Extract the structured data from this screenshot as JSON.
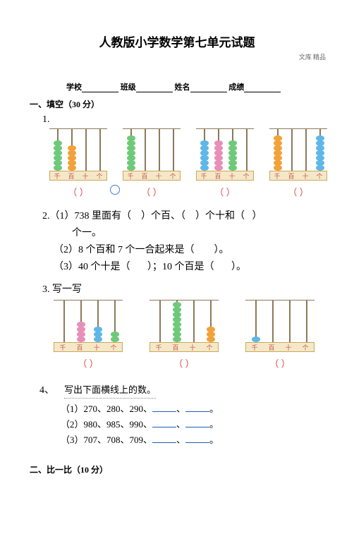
{
  "watermark": "文库 精品",
  "title": "人教版小学数学第七单元试题",
  "info": {
    "school_label": "学校",
    "class_label": "班级",
    "name_label": "姓名",
    "score_label": "成绩"
  },
  "section1": "一、填空（30 分）",
  "q1": {
    "num": "1."
  },
  "abacus_labels": [
    "千",
    "百",
    "十",
    "个"
  ],
  "colors": {
    "green": "#6fc97a",
    "orange": "#f2a23a",
    "blue": "#5fb7e8",
    "pink": "#e88fb8",
    "frame": "#8a7a5a",
    "base_fill": "#f5e8c8",
    "base_border": "#c9a85a"
  },
  "row1_abaci": [
    {
      "rods": [
        {
          "color": "green",
          "count": 6
        },
        {
          "color": "orange",
          "count": 5
        },
        {
          "color": "none",
          "count": 0
        },
        {
          "color": "none",
          "count": 0
        }
      ]
    },
    {
      "rods": [
        {
          "color": "green",
          "count": 7
        },
        {
          "color": "none",
          "count": 0
        },
        {
          "color": "none",
          "count": 0
        },
        {
          "color": "none",
          "count": 0
        }
      ]
    },
    {
      "rods": [
        {
          "color": "blue",
          "count": 6
        },
        {
          "color": "pink",
          "count": 6
        },
        {
          "color": "green",
          "count": 6
        },
        {
          "color": "none",
          "count": 0
        }
      ]
    },
    {
      "rods": [
        {
          "color": "orange",
          "count": 7
        },
        {
          "color": "none",
          "count": 0
        },
        {
          "color": "none",
          "count": 0
        },
        {
          "color": "blue",
          "count": 7
        }
      ]
    }
  ],
  "paren_pair": "（        ）",
  "q2": {
    "num": "2.",
    "line1_a": "（1）738 里面有（",
    "line1_b": "）个百、（",
    "line1_c": "）个十和（",
    "line1_d": "）",
    "line1_e": "个一。",
    "line2_a": "（2）8 个百和 7 个一合起来是（",
    "line2_b": "）。",
    "line3_a": "（3）40 个十是（",
    "line3_b": "）；10 个百是（",
    "line3_c": "）。"
  },
  "q3": {
    "num": "3.",
    "text": "写一写"
  },
  "row2_abaci": [
    {
      "rods": [
        {
          "color": "none",
          "count": 0
        },
        {
          "color": "pink",
          "count": 4
        },
        {
          "color": "blue",
          "count": 3
        },
        {
          "color": "green",
          "count": 2
        }
      ]
    },
    {
      "rods": [
        {
          "color": "none",
          "count": 0
        },
        {
          "color": "green",
          "count": 8
        },
        {
          "color": "none",
          "count": 0
        },
        {
          "color": "orange",
          "count": 3
        }
      ]
    },
    {
      "rods": [
        {
          "color": "blue",
          "count": 1
        },
        {
          "color": "none",
          "count": 0
        },
        {
          "color": "none",
          "count": 0
        },
        {
          "color": "none",
          "count": 0
        }
      ]
    }
  ],
  "q4": {
    "num": "4、",
    "hint": "写出下面横线上的数。",
    "l1_a": "（1）270、280、290、",
    "sep": "、",
    "end": "。",
    "l2_a": "（2）980、985、990、",
    "l3_a": "（3）707、708、709、"
  },
  "section2": "二、比一比（10 分）"
}
